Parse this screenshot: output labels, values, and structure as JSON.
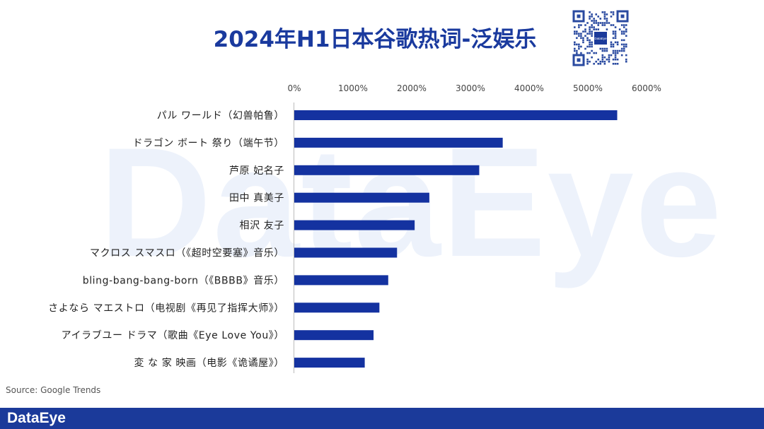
{
  "page": {
    "watermark": "DataEye"
  },
  "header": {
    "title": "2024年H1日本谷歌热词-泛娱乐"
  },
  "qr_badge": {
    "text": "DataEye"
  },
  "source": "Source: Google Trends",
  "footer": {
    "logo": "DataEye",
    "background": "#1b3a9a"
  },
  "colors": {
    "bar": "#1432a0",
    "title": "#1a3a9e"
  },
  "chart_data": {
    "type": "bar",
    "orientation": "horizontal",
    "title": "2024年H1日本谷歌热词-泛娱乐",
    "xlim": [
      0,
      6000
    ],
    "x_ticks": [
      "0%",
      "1000%",
      "2000%",
      "3000%",
      "4000%",
      "5000%",
      "6000%"
    ],
    "x_axis_position": "top",
    "grid": false,
    "categories": [
      "パル ワールド（幻兽帕鲁）",
      "ドラゴン ボート 祭り（端午节）",
      "芦原 妃名子",
      "田中 真美子",
      "相沢 友子",
      "マクロス スマスロ（《超时空要塞》音乐）",
      "bling-bang-bang-born（《BBBB》音乐）",
      "さよなら マエストロ（电视剧《再见了指挥大师》）",
      "アイラブユー ドラマ（歌曲《Eye Love You》）",
      "変 な 家 映画（电影《诡谲屋》）"
    ],
    "values": [
      5500,
      3550,
      3150,
      2300,
      2050,
      1750,
      1600,
      1450,
      1350,
      1200
    ]
  }
}
